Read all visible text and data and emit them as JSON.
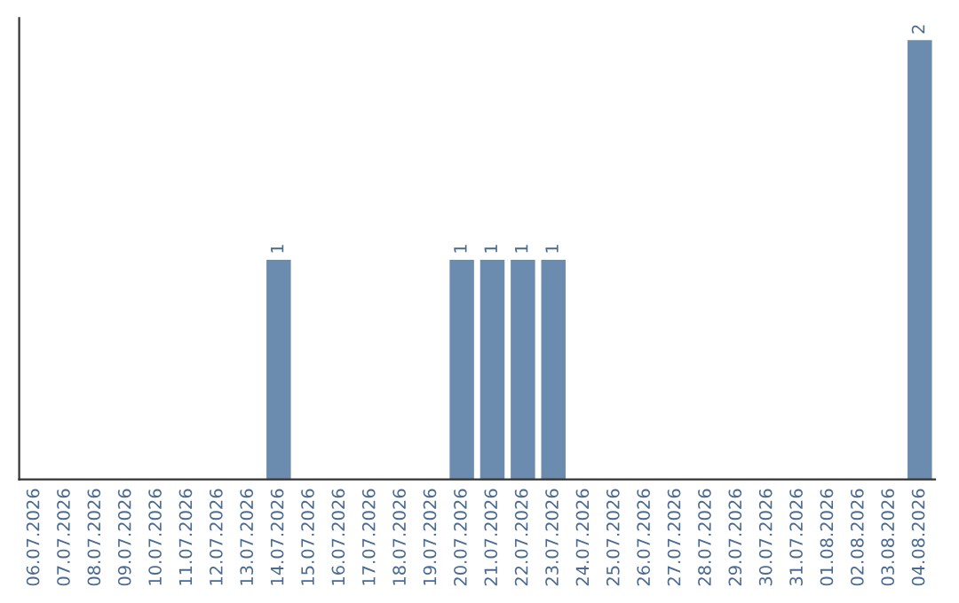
{
  "chart_data": {
    "type": "bar",
    "categories": [
      "06.07.2026",
      "07.07.2026",
      "08.07.2026",
      "09.07.2026",
      "10.07.2026",
      "11.07.2026",
      "12.07.2026",
      "13.07.2026",
      "14.07.2026",
      "15.07.2026",
      "16.07.2026",
      "17.07.2026",
      "18.07.2026",
      "19.07.2026",
      "20.07.2026",
      "21.07.2026",
      "22.07.2026",
      "23.07.2026",
      "24.07.2026",
      "25.07.2026",
      "26.07.2026",
      "27.07.2026",
      "28.07.2026",
      "29.07.2026",
      "30.07.2026",
      "31.07.2026",
      "01.08.2026",
      "02.08.2026",
      "03.08.2026",
      "04.08.2026"
    ],
    "values": [
      0,
      0,
      0,
      0,
      0,
      0,
      0,
      0,
      1,
      0,
      0,
      0,
      0,
      0,
      1,
      1,
      1,
      1,
      0,
      0,
      0,
      0,
      0,
      0,
      0,
      0,
      0,
      0,
      0,
      2
    ],
    "color": "#6b8cae",
    "value_labels": [
      null,
      null,
      null,
      null,
      null,
      null,
      null,
      null,
      "1",
      null,
      null,
      null,
      null,
      null,
      "1",
      "1",
      "1",
      "1",
      null,
      null,
      null,
      null,
      null,
      null,
      null,
      null,
      null,
      null,
      null,
      "2"
    ],
    "tick_labels": "x",
    "grid": false
  }
}
